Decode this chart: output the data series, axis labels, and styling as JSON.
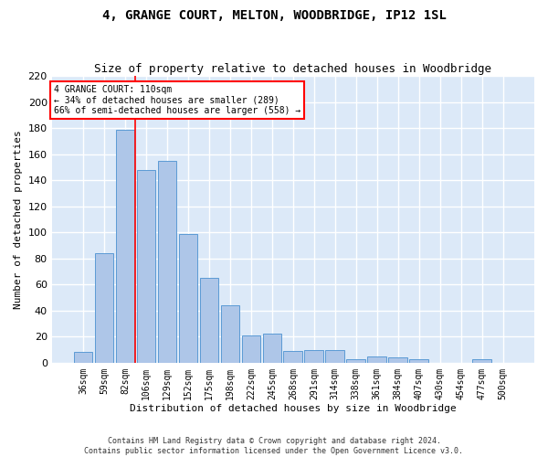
{
  "title": "4, GRANGE COURT, MELTON, WOODBRIDGE, IP12 1SL",
  "subtitle": "Size of property relative to detached houses in Woodbridge",
  "xlabel": "Distribution of detached houses by size in Woodbridge",
  "ylabel": "Number of detached properties",
  "footer_line1": "Contains HM Land Registry data © Crown copyright and database right 2024.",
  "footer_line2": "Contains public sector information licensed under the Open Government Licence v3.0.",
  "categories": [
    "36sqm",
    "59sqm",
    "82sqm",
    "106sqm",
    "129sqm",
    "152sqm",
    "175sqm",
    "198sqm",
    "222sqm",
    "245sqm",
    "268sqm",
    "291sqm",
    "314sqm",
    "338sqm",
    "361sqm",
    "384sqm",
    "407sqm",
    "430sqm",
    "454sqm",
    "477sqm",
    "500sqm"
  ],
  "values": [
    8,
    84,
    179,
    148,
    155,
    99,
    65,
    44,
    21,
    22,
    9,
    10,
    10,
    3,
    5,
    4,
    3,
    0,
    0,
    3,
    0
  ],
  "bar_color": "#aec6e8",
  "bar_edge_color": "#5b9bd5",
  "bg_color": "#dce9f8",
  "grid_color": "#ffffff",
  "red_line_x": 2.5,
  "annotation_title": "4 GRANGE COURT: 110sqm",
  "annotation_line2": "← 34% of detached houses are smaller (289)",
  "annotation_line3": "66% of semi-detached houses are larger (558) →",
  "ylim": [
    0,
    220
  ],
  "yticks": [
    0,
    20,
    40,
    60,
    80,
    100,
    120,
    140,
    160,
    180,
    200,
    220
  ],
  "title_fontsize": 10,
  "subtitle_fontsize": 9,
  "xlabel_fontsize": 8,
  "ylabel_fontsize": 8,
  "tick_fontsize": 7,
  "annotation_fontsize": 7,
  "footer_fontsize": 6
}
